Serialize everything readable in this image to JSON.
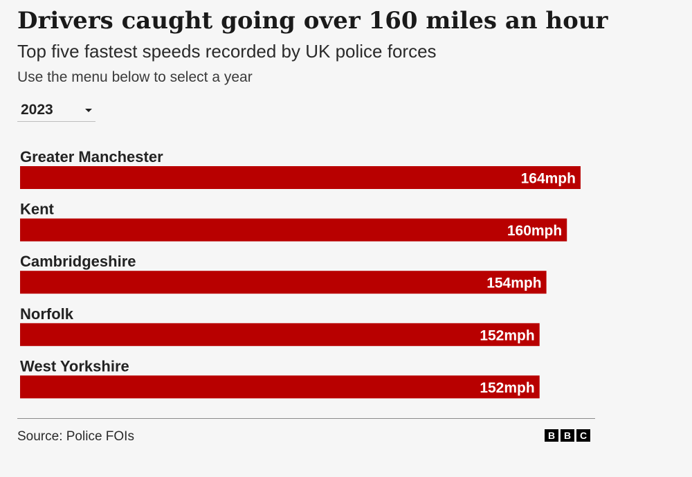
{
  "header": {
    "title": "Drivers caught going over 160 miles an hour",
    "subtitle": "Top five fastest speeds recorded by UK police forces",
    "instruction": "Use the menu below to select a year"
  },
  "year_select": {
    "selected": "2023"
  },
  "chart_data": {
    "type": "bar",
    "orientation": "horizontal",
    "title": "Drivers caught going over 160 miles an hour",
    "subtitle": "Top five fastest speeds recorded by UK police forces",
    "categories": [
      "Greater Manchester",
      "Kent",
      "Cambridgeshire",
      "Norfolk",
      "West Yorkshire"
    ],
    "values": [
      164,
      160,
      154,
      152,
      152
    ],
    "value_labels": [
      "164mph",
      "160mph",
      "154mph",
      "152mph",
      "152mph"
    ],
    "unit": "mph",
    "xlim": [
      0,
      180
    ],
    "grid": false,
    "legend": "none",
    "bar_color": "#b80000",
    "label_color": "#222222",
    "value_label_color": "#ffffff"
  },
  "footer": {
    "source": "Source: Police FOIs",
    "logo_text": "BBC"
  }
}
